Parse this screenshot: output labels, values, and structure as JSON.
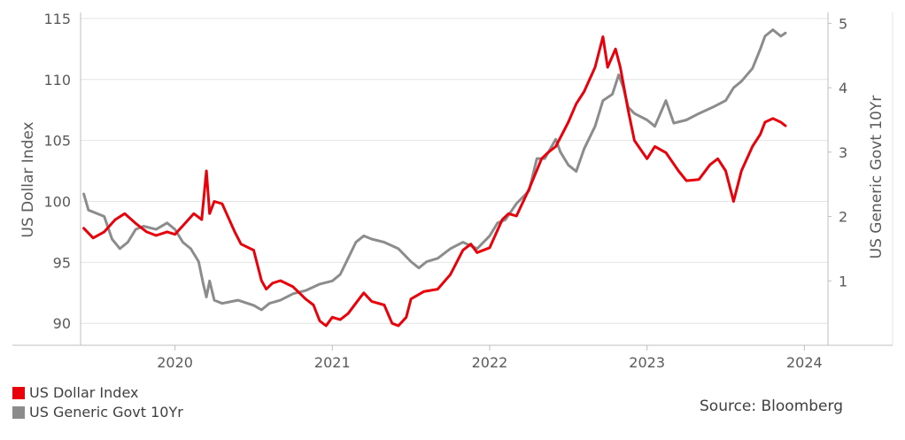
{
  "colors": {
    "usd": "#e8000b",
    "yield": "#8c8c8c"
  },
  "chart_data": {
    "type": "line",
    "title": "",
    "xlabel": "",
    "ylabel": "US Dollar Index",
    "y2label": "US Generic Govt 10Yr",
    "xlim": [
      2019.4,
      2024.15
    ],
    "ylim": [
      88.2,
      115.5
    ],
    "y2lim": [
      0.0,
      5.17
    ],
    "x_ticks": [
      2020,
      2021,
      2022,
      2023,
      2024
    ],
    "x_tick_labels": [
      "2020",
      "2021",
      "2022",
      "2023",
      "2024"
    ],
    "y_ticks": [
      90,
      95,
      100,
      105,
      110,
      115
    ],
    "y_tick_labels": [
      "90",
      "95",
      "100",
      "105",
      "110",
      "115"
    ],
    "y2_ticks": [
      1,
      2,
      3,
      4,
      5
    ],
    "y2_tick_labels": [
      "1",
      "2",
      "3",
      "4",
      "5"
    ],
    "grid": "horizontal",
    "legend": "bottom-left",
    "series": [
      {
        "name": "US Dollar Index",
        "axis": "left",
        "x": [
          2019.42,
          2019.48,
          2019.55,
          2019.62,
          2019.68,
          2019.75,
          2019.82,
          2019.88,
          2019.95,
          2020.0,
          2020.05,
          2020.12,
          2020.17,
          2020.2,
          2020.22,
          2020.25,
          2020.3,
          2020.38,
          2020.42,
          2020.5,
          2020.55,
          2020.58,
          2020.62,
          2020.67,
          2020.75,
          2020.83,
          2020.88,
          2020.92,
          2020.96,
          2021.0,
          2021.05,
          2021.1,
          2021.17,
          2021.2,
          2021.25,
          2021.33,
          2021.38,
          2021.42,
          2021.47,
          2021.5,
          2021.58,
          2021.67,
          2021.75,
          2021.83,
          2021.88,
          2021.92,
          2022.0,
          2022.08,
          2022.12,
          2022.17,
          2022.25,
          2022.33,
          2022.37,
          2022.42,
          2022.5,
          2022.55,
          2022.6,
          2022.67,
          2022.72,
          2022.75,
          2022.8,
          2022.83,
          2022.88,
          2022.92,
          2023.0,
          2023.05,
          2023.12,
          2023.2,
          2023.25,
          2023.33,
          2023.4,
          2023.45,
          2023.5,
          2023.55,
          2023.6,
          2023.67,
          2023.72,
          2023.75,
          2023.8,
          2023.85,
          2023.88
        ],
        "values": [
          97.8,
          97.0,
          97.5,
          98.5,
          99.0,
          98.2,
          97.5,
          97.2,
          97.5,
          97.3,
          98.0,
          99.0,
          98.5,
          102.5,
          99.0,
          100.0,
          99.8,
          97.5,
          96.5,
          96.0,
          93.5,
          92.8,
          93.3,
          93.5,
          93.0,
          92.0,
          91.5,
          90.2,
          89.8,
          90.5,
          90.3,
          90.8,
          92.0,
          92.5,
          91.8,
          91.5,
          90.0,
          89.8,
          90.5,
          92.0,
          92.6,
          92.8,
          94.0,
          96.0,
          96.5,
          95.8,
          96.2,
          98.5,
          99.0,
          98.8,
          101.0,
          103.5,
          104.0,
          104.5,
          106.5,
          108.0,
          109.0,
          111.0,
          113.5,
          111.0,
          112.5,
          111.0,
          107.5,
          105.0,
          103.5,
          104.5,
          104.0,
          102.5,
          101.7,
          101.8,
          103.0,
          103.5,
          102.5,
          100.0,
          102.5,
          104.5,
          105.5,
          106.5,
          106.8,
          106.5,
          106.2
        ]
      },
      {
        "name": "US Generic Govt 10Yr",
        "axis": "right",
        "x": [
          2019.42,
          2019.45,
          2019.5,
          2019.55,
          2019.6,
          2019.65,
          2019.7,
          2019.75,
          2019.8,
          2019.88,
          2019.95,
          2020.0,
          2020.05,
          2020.1,
          2020.15,
          2020.18,
          2020.2,
          2020.22,
          2020.25,
          2020.3,
          2020.4,
          2020.5,
          2020.55,
          2020.6,
          2020.67,
          2020.75,
          2020.83,
          2020.92,
          2021.0,
          2021.05,
          2021.1,
          2021.15,
          2021.2,
          2021.25,
          2021.33,
          2021.42,
          2021.5,
          2021.55,
          2021.6,
          2021.67,
          2021.75,
          2021.83,
          2021.92,
          2022.0,
          2022.05,
          2022.1,
          2022.17,
          2022.25,
          2022.3,
          2022.35,
          2022.42,
          2022.45,
          2022.5,
          2022.55,
          2022.6,
          2022.67,
          2022.72,
          2022.78,
          2022.82,
          2022.85,
          2022.88,
          2022.92,
          2023.0,
          2023.05,
          2023.12,
          2023.17,
          2023.25,
          2023.33,
          2023.42,
          2023.5,
          2023.55,
          2023.6,
          2023.67,
          2023.72,
          2023.75,
          2023.8,
          2023.85,
          2023.88
        ],
        "values": [
          2.35,
          2.1,
          2.05,
          2.0,
          1.65,
          1.5,
          1.6,
          1.8,
          1.85,
          1.8,
          1.9,
          1.8,
          1.6,
          1.5,
          1.3,
          0.95,
          0.75,
          1.0,
          0.7,
          0.65,
          0.7,
          0.62,
          0.55,
          0.65,
          0.7,
          0.8,
          0.85,
          0.95,
          1.0,
          1.1,
          1.35,
          1.6,
          1.7,
          1.65,
          1.6,
          1.5,
          1.3,
          1.2,
          1.3,
          1.35,
          1.5,
          1.6,
          1.5,
          1.7,
          1.9,
          1.95,
          2.2,
          2.4,
          2.9,
          2.9,
          3.2,
          3.0,
          2.8,
          2.7,
          3.05,
          3.4,
          3.8,
          3.9,
          4.2,
          4.0,
          3.7,
          3.6,
          3.5,
          3.4,
          3.8,
          3.45,
          3.5,
          3.6,
          3.7,
          3.8,
          4.0,
          4.1,
          4.3,
          4.6,
          4.8,
          4.9,
          4.8,
          4.85
        ]
      }
    ]
  },
  "legend": {
    "usd": "US Dollar Index",
    "yield": "US Generic Govt 10Yr"
  },
  "source": "Source: Bloomberg"
}
